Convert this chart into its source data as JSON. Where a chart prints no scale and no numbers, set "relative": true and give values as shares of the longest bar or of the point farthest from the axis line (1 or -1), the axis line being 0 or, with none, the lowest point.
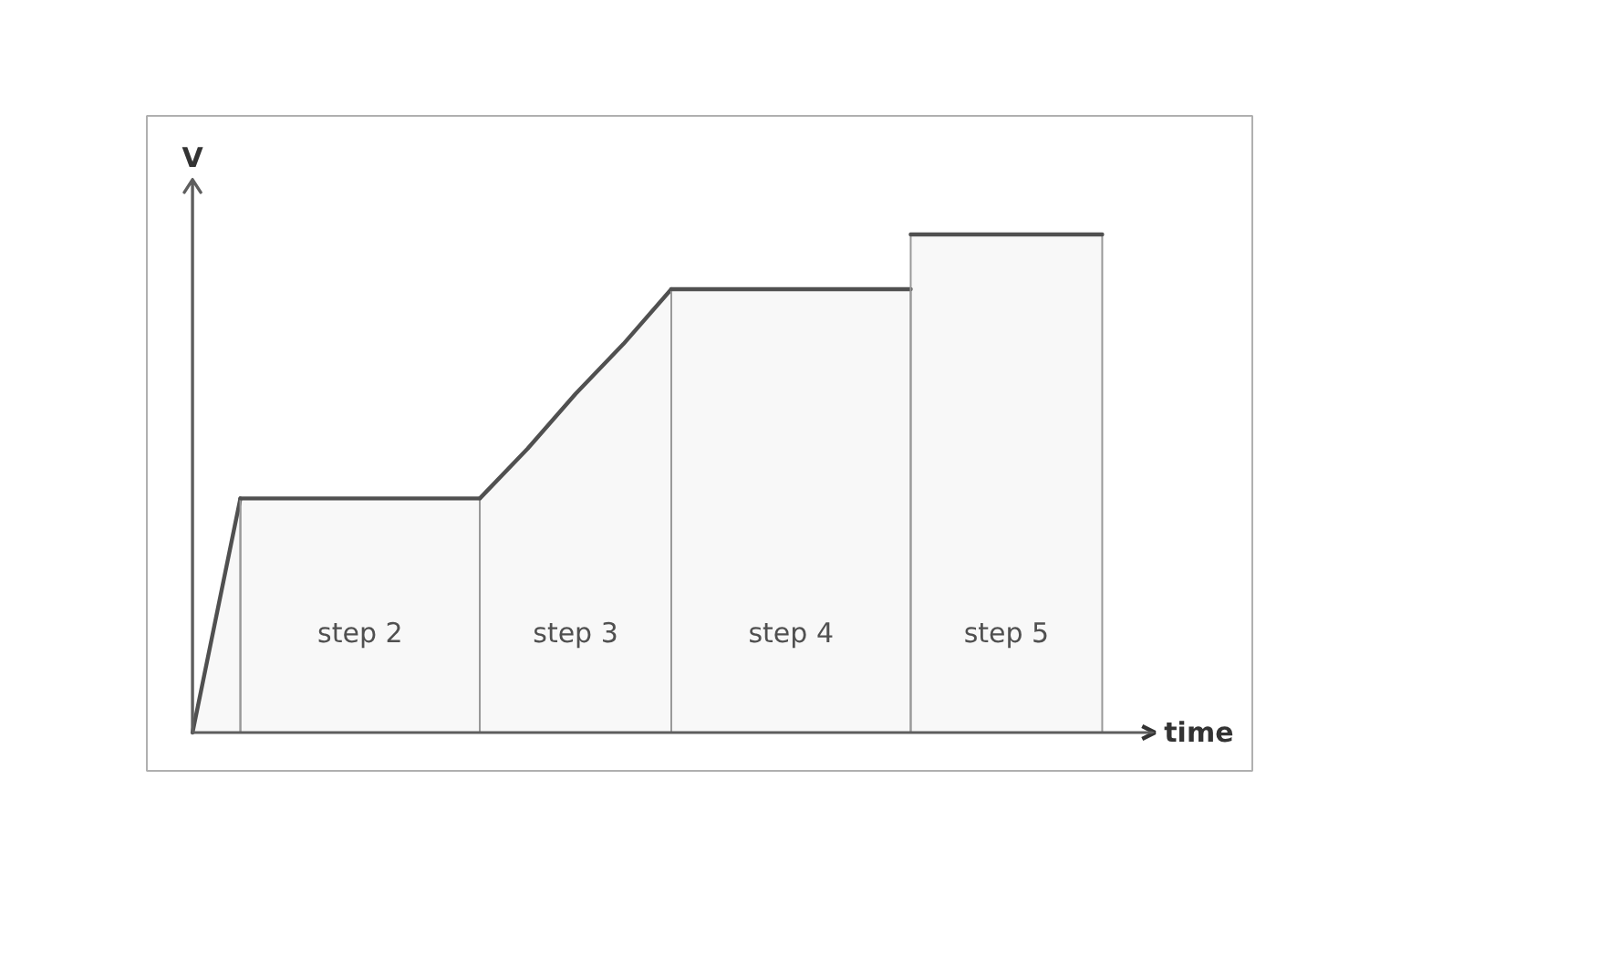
{
  "chart_data": {
    "type": "area",
    "relative": true,
    "xlabel": "time",
    "ylabel": "V",
    "line_style": "solid",
    "categories": [
      null,
      null,
      null,
      null,
      null,
      null,
      null,
      null,
      null,
      null,
      null,
      null,
      null,
      null,
      null,
      null,
      null,
      null,
      null,
      null
    ],
    "series": [
      {
        "color": "#505050",
        "values": [
          0,
          0.47,
          null,
          null,
          null,
          null,
          null,
          null,
          null,
          null,
          null,
          null,
          null,
          null,
          null,
          null,
          null,
          null,
          null,
          null
        ]
      },
      {
        "name": "step 2",
        "color": "#505050",
        "values": [
          null,
          0.47,
          0.47,
          0.47,
          0.47,
          0.47,
          0.47,
          null,
          null,
          null,
          null,
          null,
          null,
          null,
          null,
          null,
          null,
          null,
          null,
          null
        ]
      },
      {
        "name": "step 3",
        "color": "#505050",
        "values": [
          null,
          null,
          null,
          null,
          null,
          null,
          0.47,
          0.57,
          0.68,
          0.78,
          0.89,
          null,
          null,
          null,
          null,
          null,
          null,
          null,
          null,
          null
        ]
      },
      {
        "name": "step 4",
        "color": "#505050",
        "values": [
          null,
          null,
          null,
          null,
          null,
          null,
          null,
          null,
          null,
          null,
          0.89,
          0.89,
          0.89,
          0.89,
          0.89,
          0.89,
          null,
          null,
          null,
          null
        ]
      },
      {
        "name": "step 5",
        "color": "#505050",
        "values": [
          null,
          null,
          null,
          null,
          null,
          null,
          null,
          null,
          null,
          null,
          null,
          null,
          null,
          null,
          null,
          1,
          1,
          1,
          1,
          1
        ]
      }
    ]
  }
}
